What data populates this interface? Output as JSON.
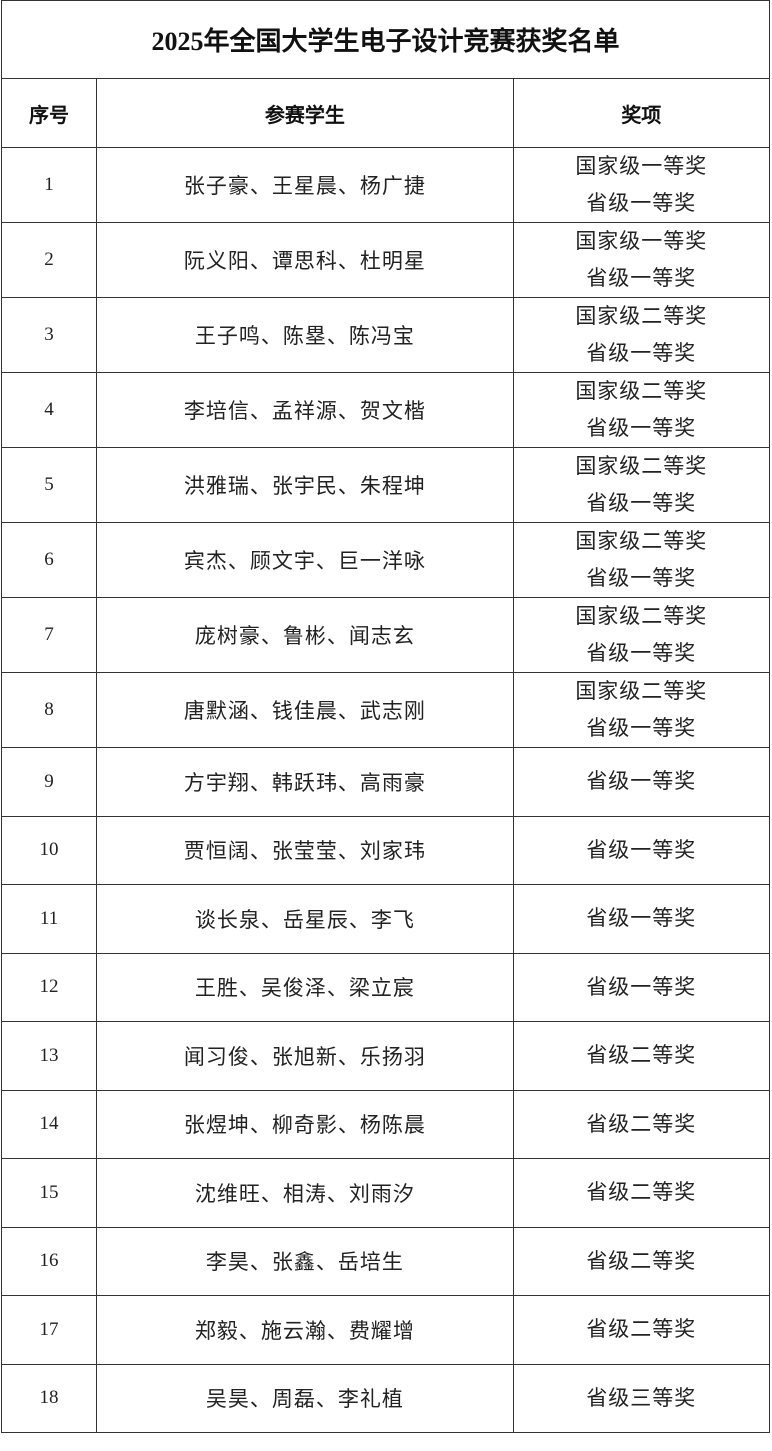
{
  "title": "2025年全国大学生电子设计竞赛获奖名单",
  "headers": {
    "no": "序号",
    "students": "参赛学生",
    "award": "奖项"
  },
  "rows": [
    {
      "no": "1",
      "students": "张子豪、王星晨、杨广捷",
      "awards": [
        "国家级一等奖",
        "省级一等奖"
      ]
    },
    {
      "no": "2",
      "students": "阮义阳、谭思科、杜明星",
      "awards": [
        "国家级一等奖",
        "省级一等奖"
      ]
    },
    {
      "no": "3",
      "students": "王子鸣、陈塁、陈冯宝",
      "awards": [
        "国家级二等奖",
        "省级一等奖"
      ]
    },
    {
      "no": "4",
      "students": "李培信、孟祥源、贺文楷",
      "awards": [
        "国家级二等奖",
        "省级一等奖"
      ]
    },
    {
      "no": "5",
      "students": "洪雅瑞、张宇民、朱程坤",
      "awards": [
        "国家级二等奖",
        "省级一等奖"
      ]
    },
    {
      "no": "6",
      "students": "宾杰、顾文宇、巨一洋咏",
      "awards": [
        "国家级二等奖",
        "省级一等奖"
      ]
    },
    {
      "no": "7",
      "students": "庞树豪、鲁彬、闻志玄",
      "awards": [
        "国家级二等奖",
        "省级一等奖"
      ]
    },
    {
      "no": "8",
      "students": "唐默涵、钱佳晨、武志刚",
      "awards": [
        "国家级二等奖",
        "省级一等奖"
      ]
    },
    {
      "no": "9",
      "students": "方宇翔、韩跃玮、高雨豪",
      "awards": [
        "省级一等奖"
      ]
    },
    {
      "no": "10",
      "students": "贾恒阔、张莹莹、刘家玮",
      "awards": [
        "省级一等奖"
      ]
    },
    {
      "no": "11",
      "students": "谈长泉、岳星辰、李飞",
      "awards": [
        "省级一等奖"
      ]
    },
    {
      "no": "12",
      "students": "王胜、吴俊泽、梁立宸",
      "awards": [
        "省级一等奖"
      ]
    },
    {
      "no": "13",
      "students": "闻习俊、张旭新、乐扬羽",
      "awards": [
        "省级二等奖"
      ]
    },
    {
      "no": "14",
      "students": "张煜坤、柳奇影、杨陈晨",
      "awards": [
        "省级二等奖"
      ]
    },
    {
      "no": "15",
      "students": "沈维旺、相涛、刘雨汐",
      "awards": [
        "省级二等奖"
      ]
    },
    {
      "no": "16",
      "students": "李昊、张鑫、岳培生",
      "awards": [
        "省级二等奖"
      ]
    },
    {
      "no": "17",
      "students": "郑毅、施云瀚、费耀增",
      "awards": [
        "省级二等奖"
      ]
    },
    {
      "no": "18",
      "students": "吴昊、周磊、李礼植",
      "awards": [
        "省级三等奖"
      ]
    }
  ]
}
